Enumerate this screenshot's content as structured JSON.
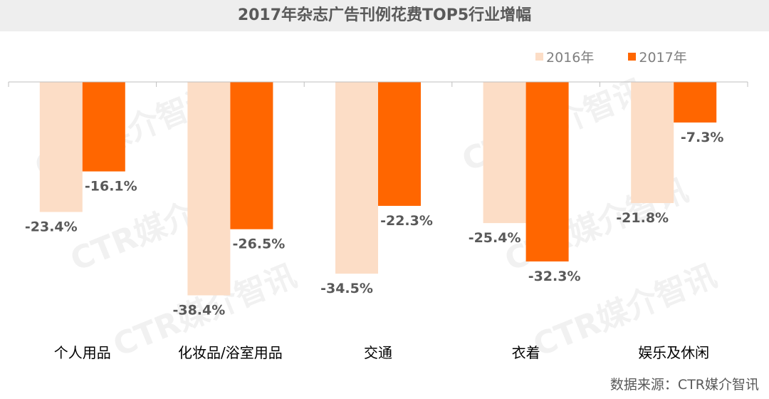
{
  "title": "2017年杂志广告刊例花费TOP5行业增幅",
  "source": "数据来源：CTR媒介智讯",
  "watermark": "CTR媒介智讯",
  "colors": {
    "s2016": "#FCDDC6",
    "s2017": "#FF6600",
    "axis": "#bfbfbf"
  },
  "chart_data": {
    "type": "bar",
    "title": "2017年杂志广告刊例花费TOP5行业增幅",
    "categories": [
      "个人用品",
      "化妆品/浴室用品",
      "交通",
      "衣着",
      "娱乐及休闲"
    ],
    "series": [
      {
        "name": "2016年",
        "values": [
          -23.4,
          -38.4,
          -34.5,
          -25.4,
          -21.8
        ],
        "labels": [
          "-23.4%",
          "-38.4%",
          "-34.5%",
          "-25.4%",
          "-21.8%"
        ]
      },
      {
        "name": "2017年",
        "values": [
          -16.1,
          -26.5,
          -22.3,
          -32.3,
          -7.3
        ],
        "labels": [
          "-16.1%",
          "-26.5%",
          "-22.3%",
          "-32.3%",
          "-7.3%"
        ]
      }
    ],
    "ylim": [
      -40,
      0
    ],
    "unit": "%",
    "legend_position": "top-right",
    "grid": false
  }
}
